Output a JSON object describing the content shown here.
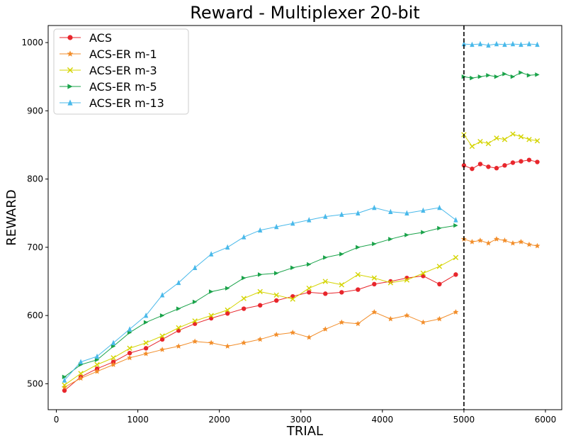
{
  "chart_data": {
    "type": "line",
    "title": "Reward - Multiplexer 20-bit",
    "xlabel": "TRIAL",
    "ylabel": "REWARD",
    "xlim": [
      -100,
      6200
    ],
    "ylim": [
      462,
      1025
    ],
    "xticks": [
      0,
      1000,
      2000,
      3000,
      4000,
      5000,
      6000
    ],
    "yticks": [
      500,
      600,
      700,
      800,
      900,
      1000
    ],
    "grid": false,
    "legend_position": "top-left",
    "vline": {
      "x": 5000,
      "style": "dashed",
      "color": "#000000"
    },
    "series": [
      {
        "name": "ACS",
        "color": "#e8262c",
        "marker": "circle",
        "x": [
          100,
          300,
          500,
          700,
          900,
          1100,
          1300,
          1500,
          1700,
          1900,
          2100,
          2300,
          2500,
          2700,
          2900,
          3100,
          3300,
          3500,
          3700,
          3900,
          4100,
          4300,
          4500,
          4700,
          4900,
          5000,
          5100,
          5200,
          5300,
          5400,
          5500,
          5600,
          5700,
          5800,
          5900
        ],
        "y": [
          490,
          510,
          522,
          532,
          545,
          552,
          565,
          578,
          588,
          596,
          603,
          610,
          615,
          622,
          628,
          634,
          632,
          634,
          638,
          646,
          650,
          655,
          658,
          646,
          660,
          820,
          815,
          822,
          818,
          816,
          820,
          824,
          826,
          828,
          825
        ]
      },
      {
        "name": "ACS-ER m-1",
        "color": "#f28e2b",
        "marker": "star",
        "x": [
          100,
          300,
          500,
          700,
          900,
          1100,
          1300,
          1500,
          1700,
          1900,
          2100,
          2300,
          2500,
          2700,
          2900,
          3100,
          3300,
          3500,
          3700,
          3900,
          4100,
          4300,
          4500,
          4700,
          4900,
          5000,
          5100,
          5200,
          5300,
          5400,
          5500,
          5600,
          5700,
          5800,
          5900
        ],
        "y": [
          495,
          508,
          518,
          528,
          538,
          544,
          550,
          555,
          562,
          560,
          555,
          560,
          565,
          572,
          575,
          568,
          580,
          590,
          588,
          605,
          595,
          600,
          590,
          595,
          605,
          712,
          708,
          710,
          706,
          712,
          710,
          706,
          708,
          704,
          702
        ]
      },
      {
        "name": "ACS-ER m-3",
        "color": "#d4d400",
        "marker": "x",
        "x": [
          100,
          300,
          500,
          700,
          900,
          1100,
          1300,
          1500,
          1700,
          1900,
          2100,
          2300,
          2500,
          2700,
          2900,
          3100,
          3300,
          3500,
          3700,
          3900,
          4100,
          4300,
          4500,
          4700,
          4900,
          5000,
          5100,
          5200,
          5300,
          5400,
          5500,
          5600,
          5700,
          5800,
          5900
        ],
        "y": [
          498,
          515,
          528,
          538,
          552,
          560,
          570,
          582,
          592,
          600,
          608,
          625,
          635,
          630,
          624,
          640,
          650,
          645,
          660,
          655,
          648,
          652,
          662,
          672,
          685,
          865,
          848,
          855,
          852,
          860,
          858,
          866,
          862,
          858,
          856
        ]
      },
      {
        "name": "ACS-ER m-5",
        "color": "#1aa34a",
        "marker": "triangle-right",
        "x": [
          100,
          300,
          500,
          700,
          900,
          1100,
          1300,
          1500,
          1700,
          1900,
          2100,
          2300,
          2500,
          2700,
          2900,
          3100,
          3300,
          3500,
          3700,
          3900,
          4100,
          4300,
          4500,
          4700,
          4900,
          5000,
          5100,
          5200,
          5300,
          5400,
          5500,
          5600,
          5700,
          5800,
          5900
        ],
        "y": [
          510,
          528,
          535,
          555,
          575,
          590,
          600,
          610,
          620,
          635,
          640,
          655,
          660,
          662,
          670,
          675,
          685,
          690,
          700,
          705,
          712,
          718,
          722,
          728,
          732,
          950,
          948,
          950,
          952,
          950,
          954,
          950,
          956,
          952,
          953
        ]
      },
      {
        "name": "ACS-ER m-13",
        "color": "#49b9ea",
        "marker": "triangle-up",
        "x": [
          100,
          300,
          500,
          700,
          900,
          1100,
          1300,
          1500,
          1700,
          1900,
          2100,
          2300,
          2500,
          2700,
          2900,
          3100,
          3300,
          3500,
          3700,
          3900,
          4100,
          4300,
          4500,
          4700,
          4900,
          5000,
          5100,
          5200,
          5300,
          5400,
          5500,
          5600,
          5700,
          5800,
          5900
        ],
        "y": [
          505,
          532,
          540,
          560,
          580,
          600,
          630,
          648,
          670,
          690,
          700,
          715,
          725,
          730,
          735,
          740,
          745,
          748,
          750,
          758,
          752,
          750,
          754,
          758,
          740,
          998,
          997,
          998,
          996,
          998,
          997,
          998,
          997,
          998,
          997
        ]
      }
    ]
  }
}
